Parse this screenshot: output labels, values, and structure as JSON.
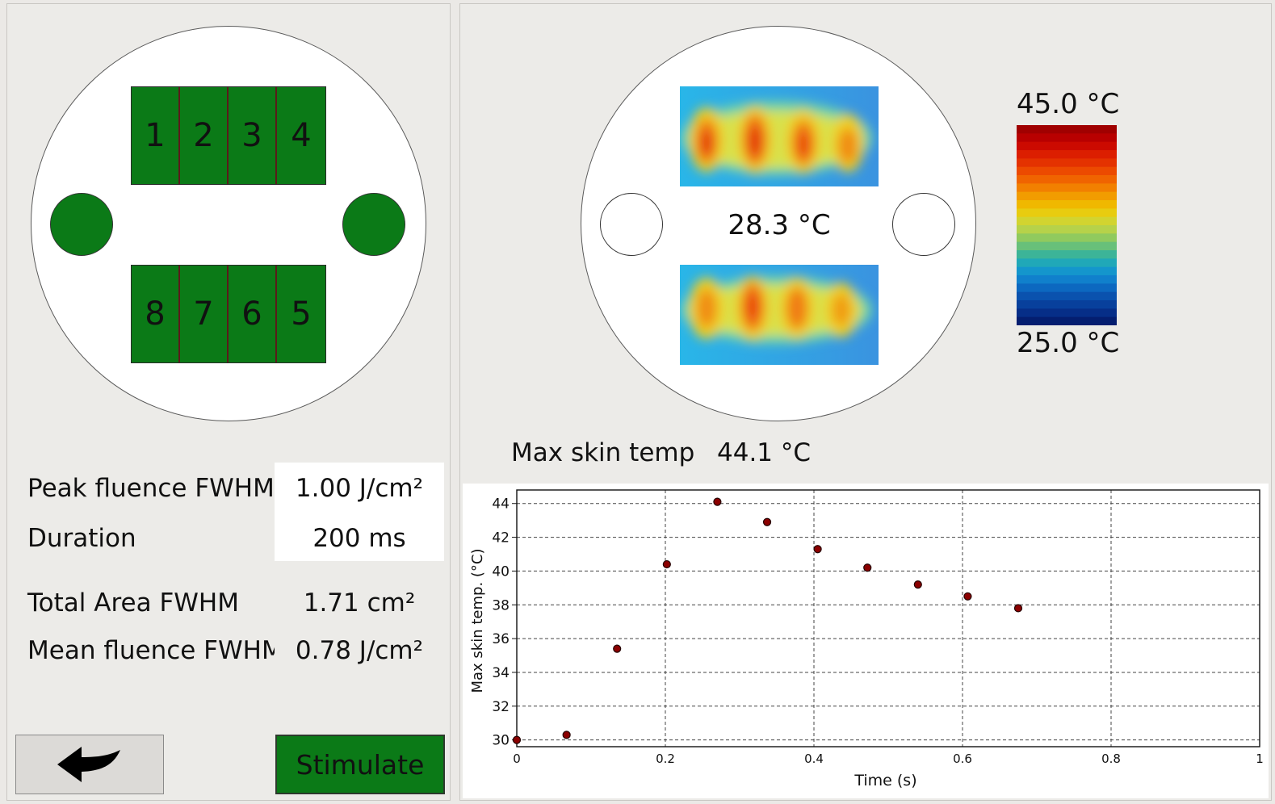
{
  "probe": {
    "pads_top": [
      "1",
      "2",
      "3",
      "4"
    ],
    "pads_bottom": [
      "8",
      "7",
      "6",
      "5"
    ],
    "pad_color": "#0b7a17"
  },
  "thermal": {
    "center_temp": "28.3 °C",
    "colorbar_max": "45.0 °C",
    "colorbar_min": "25.0 °C",
    "max_skin_temp_label": "Max skin temp",
    "max_skin_temp_value": "44.1 °C"
  },
  "params": {
    "peak_fluence_label": "Peak fluence FWHM",
    "peak_fluence_value": "1.00 J/cm²",
    "duration_label": "Duration",
    "duration_value": "200 ms",
    "total_area_label": "Total Area FWHM",
    "total_area_value": "1.71 cm²",
    "mean_fluence_label": "Mean fluence FWHM",
    "mean_fluence_value": "0.78 J/cm²"
  },
  "buttons": {
    "back_icon": "back-arrow-icon",
    "stimulate_label": "Stimulate"
  },
  "chart_data": {
    "type": "scatter",
    "xlabel": "Time (s)",
    "ylabel": "Max skin temp. (°C)",
    "xlim": [
      0,
      1
    ],
    "ylim": [
      29.6,
      44.8
    ],
    "x_ticks": [
      "0",
      "0.2",
      "0.4",
      "0.6",
      "0.8",
      "1"
    ],
    "y_ticks": [
      "30",
      "32",
      "34",
      "36",
      "38",
      "40",
      "42",
      "44"
    ],
    "grid": true,
    "marker_color": "#8b0000",
    "points": [
      {
        "x": 0.0,
        "y": 30.0
      },
      {
        "x": 0.067,
        "y": 30.3
      },
      {
        "x": 0.135,
        "y": 35.4
      },
      {
        "x": 0.202,
        "y": 40.4
      },
      {
        "x": 0.27,
        "y": 44.1
      },
      {
        "x": 0.337,
        "y": 42.9
      },
      {
        "x": 0.405,
        "y": 41.3
      },
      {
        "x": 0.472,
        "y": 40.2
      },
      {
        "x": 0.54,
        "y": 39.2
      },
      {
        "x": 0.607,
        "y": 38.5
      },
      {
        "x": 0.675,
        "y": 37.8
      }
    ]
  }
}
